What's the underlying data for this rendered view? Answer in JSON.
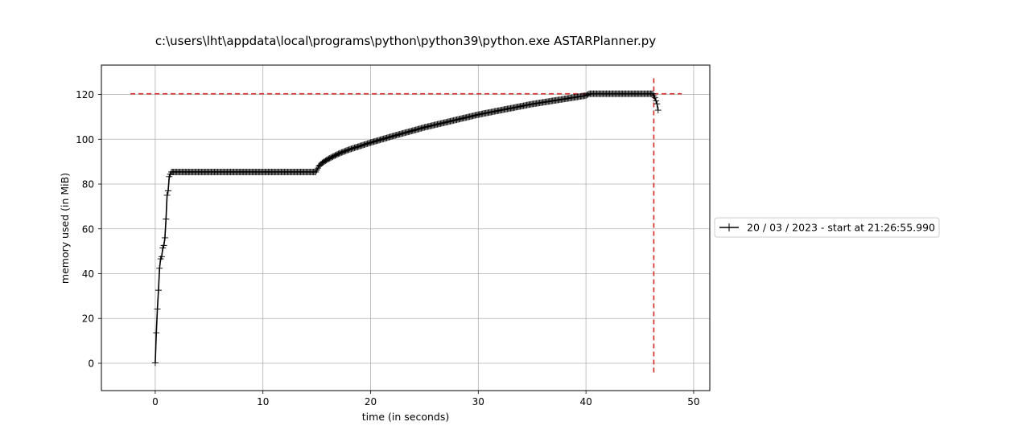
{
  "chart_data": {
    "type": "line",
    "title": "c:\\users\\lht\\appdata\\local\\programs\\python\\python39\\python.exe ASTARPlanner.py",
    "xlabel": "time (in seconds)",
    "ylabel": "memory used (in MiB)",
    "xlim": [
      -5,
      51.5
    ],
    "ylim": [
      -12.2,
      133.1
    ],
    "xticks": [
      0,
      10,
      20,
      30,
      40,
      50
    ],
    "yticks": [
      0,
      20,
      40,
      60,
      80,
      100,
      120
    ],
    "grid": true,
    "legend_position": "outside-right",
    "colors": {
      "series": "#000000",
      "peak": "#d62728",
      "grid": "#b0b0b0"
    },
    "series": [
      {
        "name": "20 / 03 / 2023 - start at 21:26:55.990",
        "keypoints": [
          [
            0.0,
            0.2
          ],
          [
            0.1,
            13.6
          ],
          [
            0.2,
            24.2
          ],
          [
            0.3,
            32.6
          ],
          [
            0.4,
            42.4
          ],
          [
            0.5,
            46.6
          ],
          [
            0.6,
            47.6
          ],
          [
            0.7,
            51.5
          ],
          [
            0.8,
            52.6
          ],
          [
            0.9,
            56.0
          ],
          [
            1.0,
            64.4
          ],
          [
            1.1,
            75.0
          ],
          [
            1.2,
            77.0
          ],
          [
            1.3,
            83.3
          ],
          [
            1.4,
            84.4
          ],
          [
            1.5,
            85.4
          ],
          [
            14.9,
            85.4
          ],
          [
            15.0,
            86.2
          ],
          [
            15.2,
            88.0
          ],
          [
            15.5,
            89.4
          ],
          [
            16.0,
            91.0
          ],
          [
            17.0,
            93.5
          ],
          [
            18.0,
            95.4
          ],
          [
            20.0,
            98.5
          ],
          [
            22.0,
            101.3
          ],
          [
            25.0,
            105.3
          ],
          [
            30.0,
            111.0
          ],
          [
            35.0,
            115.7
          ],
          [
            40.0,
            119.5
          ],
          [
            40.3,
            120.3
          ],
          [
            46.2,
            120.3
          ],
          [
            46.4,
            118.5
          ],
          [
            46.6,
            115.8
          ],
          [
            46.7,
            113.0
          ]
        ],
        "sample_interval_s": 0.1
      }
    ],
    "peak_lines": {
      "max_memory": 120.3,
      "time_at_max": 46.3
    }
  }
}
